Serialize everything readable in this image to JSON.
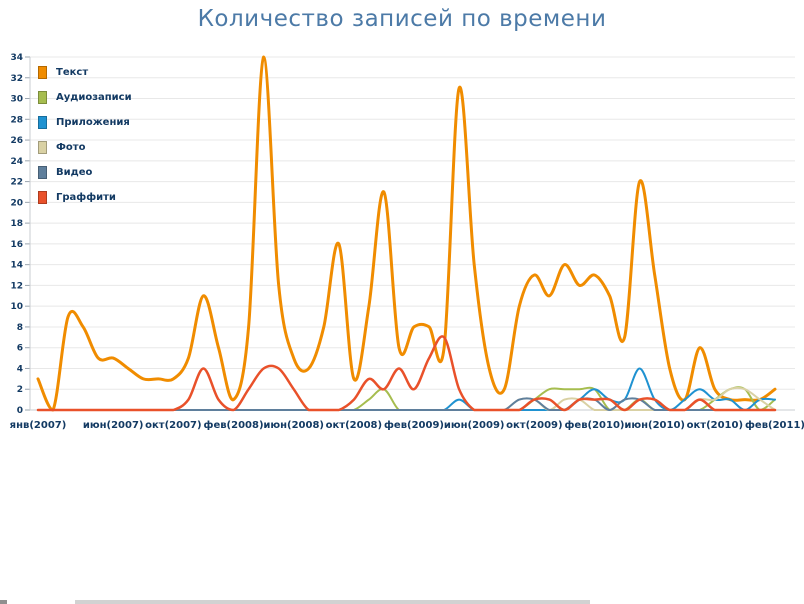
{
  "chart_data": {
    "type": "line",
    "title": "Количество записей по времени",
    "title_color": "#4c7aa7",
    "xlabel": "",
    "ylabel": "",
    "ylim": [
      0,
      34
    ],
    "y_step": 2,
    "y_tick_labels": [
      0,
      2,
      4,
      6,
      8,
      10,
      12,
      14,
      16,
      18,
      20,
      22,
      24,
      26,
      28,
      30,
      32,
      34
    ],
    "grid": true,
    "smooth_lines": true,
    "legend_position": "top-left",
    "axis_label_color": "#133a63",
    "grid_color": "#e8e8e8",
    "x_unit": "month",
    "x_range": "янв 2007 — фев 2011",
    "x_tick_labels": [
      {
        "label": "янв(2007)",
        "month_index": 0
      },
      {
        "label": "июн(2007)",
        "month_index": 5
      },
      {
        "label": "окт(2007)",
        "month_index": 9
      },
      {
        "label": "фев(2008)",
        "month_index": 13
      },
      {
        "label": "июн(2008)",
        "month_index": 17
      },
      {
        "label": "окт(2008)",
        "month_index": 21
      },
      {
        "label": "фев(2009)",
        "month_index": 25
      },
      {
        "label": "июн(2009)",
        "month_index": 29
      },
      {
        "label": "окт(2009)",
        "month_index": 33
      },
      {
        "label": "фев(2010)",
        "month_index": 37
      },
      {
        "label": "июн(2010)",
        "month_index": 41
      },
      {
        "label": "окт(2010)",
        "month_index": 45
      },
      {
        "label": "фев(2011)",
        "month_index": 49
      }
    ],
    "series": [
      {
        "name": "Текст",
        "color": "#f08c00",
        "stroke_width": 3,
        "values": [
          3,
          0,
          9,
          8,
          5,
          5,
          4,
          3,
          3,
          3,
          5,
          11,
          6,
          1,
          8,
          34,
          12,
          5,
          4,
          8,
          16,
          3,
          10,
          21,
          6,
          8,
          8,
          6,
          31,
          14,
          4,
          2,
          10,
          13,
          11,
          14,
          12,
          13,
          11,
          7,
          22,
          13,
          4,
          1,
          6,
          2,
          1,
          1,
          1,
          2
        ]
      },
      {
        "name": "Аудиозаписи",
        "color": "#a6bd4f",
        "stroke_width": 2,
        "values": [
          0,
          0,
          0,
          0,
          0,
          0,
          0,
          0,
          0,
          0,
          0,
          0,
          0,
          0,
          0,
          0,
          0,
          0,
          0,
          0,
          0,
          0,
          1,
          2,
          0,
          0,
          0,
          0,
          0,
          0,
          0,
          0,
          0,
          1,
          2,
          2,
          2,
          2,
          0,
          0,
          1,
          0,
          0,
          0,
          0,
          1,
          2,
          2,
          0,
          1
        ]
      },
      {
        "name": "Приложения",
        "color": "#1f92d1",
        "stroke_width": 2,
        "values": [
          0,
          0,
          0,
          0,
          0,
          0,
          0,
          0,
          0,
          0,
          0,
          0,
          0,
          0,
          0,
          0,
          0,
          0,
          0,
          0,
          0,
          0,
          0,
          0,
          0,
          0,
          0,
          0,
          1,
          0,
          0,
          0,
          0,
          0,
          0,
          0,
          1,
          2,
          1,
          1,
          4,
          1,
          0,
          1,
          2,
          1,
          1,
          0,
          1,
          1
        ]
      },
      {
        "name": "Фото",
        "color": "#d9d1a4",
        "stroke_width": 2,
        "values": [
          0,
          0,
          0,
          0,
          0,
          0,
          0,
          0,
          0,
          0,
          0,
          0,
          0,
          0,
          0,
          0,
          0,
          0,
          0,
          0,
          0,
          0,
          0,
          0,
          0,
          0,
          0,
          0,
          0,
          0,
          0,
          0,
          1,
          1,
          0,
          1,
          1,
          0,
          0,
          0,
          0,
          0,
          0,
          0,
          1,
          1,
          2,
          2,
          1,
          0
        ]
      },
      {
        "name": "Видео",
        "color": "#5f7f9c",
        "stroke_width": 2,
        "values": [
          0,
          0,
          0,
          0,
          0,
          0,
          0,
          0,
          0,
          0,
          0,
          0,
          0,
          0,
          0,
          0,
          0,
          0,
          0,
          0,
          0,
          0,
          0,
          0,
          0,
          0,
          0,
          0,
          0,
          0,
          0,
          0,
          1,
          1,
          0,
          0,
          1,
          1,
          0,
          1,
          1,
          0,
          0,
          0,
          0,
          0,
          0,
          0,
          0,
          0
        ]
      },
      {
        "name": "Граффити",
        "color": "#e9512a",
        "stroke_width": 2.5,
        "values": [
          0,
          0,
          0,
          0,
          0,
          0,
          0,
          0,
          0,
          0,
          1,
          4,
          1,
          0,
          2,
          4,
          4,
          2,
          0,
          0,
          0,
          1,
          3,
          2,
          4,
          2,
          5,
          7,
          2,
          0,
          0,
          0,
          0,
          1,
          1,
          0,
          1,
          1,
          1,
          0,
          1,
          1,
          0,
          0,
          1,
          0,
          0,
          0,
          0,
          0
        ]
      }
    ]
  }
}
